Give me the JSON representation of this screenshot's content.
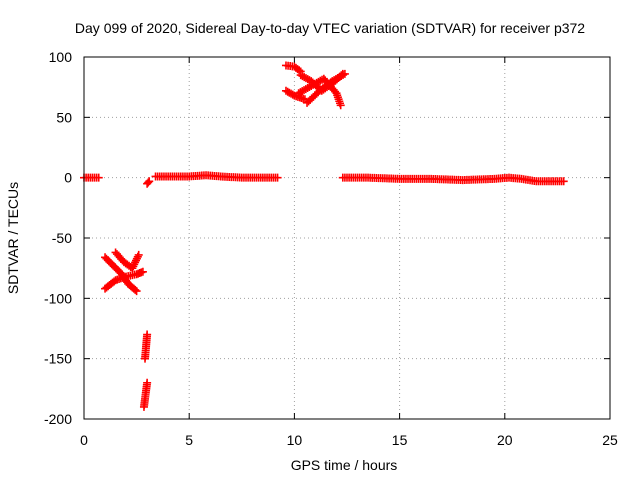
{
  "chart_data": {
    "type": "scatter",
    "title": "Day 099 of 2020, Sidereal Day-to-day VTEC variation (SDTVAR) for receiver p372",
    "xlabel": "GPS time / hours",
    "ylabel": "SDTVAR / TECUs",
    "xlim": [
      0,
      25
    ],
    "ylim": [
      -200,
      100
    ],
    "x_ticks": [
      0,
      5,
      10,
      15,
      20,
      25
    ],
    "y_ticks": [
      -200,
      -150,
      -100,
      -50,
      0,
      50,
      100
    ],
    "x_tick_labels": [
      "0",
      "5",
      "10",
      "15",
      "20",
      "25"
    ],
    "y_tick_labels": [
      "-200",
      "-150",
      "-100",
      "-50",
      "0",
      "50",
      "100"
    ],
    "grid": true,
    "marker": "+",
    "color": "#ff0000",
    "segments": [
      {
        "x": [
          0.0,
          0.7
        ],
        "y": [
          0,
          0
        ]
      },
      {
        "x": [
          1.0,
          1.5,
          2.0,
          2.5,
          2.8
        ],
        "y": [
          -92,
          -85,
          -82,
          -80,
          -78
        ]
      },
      {
        "x": [
          1.0,
          1.4,
          1.8,
          2.1,
          2.5
        ],
        "y": [
          -66,
          -73,
          -80,
          -88,
          -94
        ]
      },
      {
        "x": [
          1.5,
          1.9,
          2.3,
          2.6
        ],
        "y": [
          -62,
          -70,
          -75,
          -64
        ]
      },
      {
        "x": [
          2.9,
          3.0
        ],
        "y": [
          -150,
          -130
        ]
      },
      {
        "x": [
          2.85,
          3.0
        ],
        "y": [
          -190,
          -170
        ]
      },
      {
        "x": [
          3.0,
          3.1
        ],
        "y": [
          -5,
          -3
        ]
      },
      {
        "x": [
          3.4,
          4.0,
          5.0,
          5.8,
          6.5,
          7.5,
          8.5,
          9.2
        ],
        "y": [
          1,
          1,
          1,
          2,
          1,
          0,
          0,
          0
        ]
      },
      {
        "x": [
          9.6,
          10.0,
          10.3
        ],
        "y": [
          93,
          92,
          88
        ]
      },
      {
        "x": [
          9.6,
          10.0,
          10.5
        ],
        "y": [
          72,
          68,
          65
        ]
      },
      {
        "x": [
          10.2,
          10.8,
          11.4,
          12.0,
          12.2
        ],
        "y": [
          70,
          76,
          82,
          70,
          60
        ]
      },
      {
        "x": [
          10.3,
          10.8,
          11.3,
          11.8,
          12.3
        ],
        "y": [
          85,
          80,
          72,
          78,
          86
        ]
      },
      {
        "x": [
          10.6,
          11.2,
          11.8,
          12.4
        ],
        "y": [
          62,
          72,
          80,
          86
        ]
      },
      {
        "x": [
          12.3,
          13.5,
          15.0,
          16.5,
          18.0,
          19.5,
          20.2,
          20.8,
          21.5,
          22.3,
          22.8
        ],
        "y": [
          0,
          0,
          -1,
          -1,
          -2,
          -1,
          0,
          -1,
          -3,
          -3,
          -3
        ]
      }
    ]
  }
}
